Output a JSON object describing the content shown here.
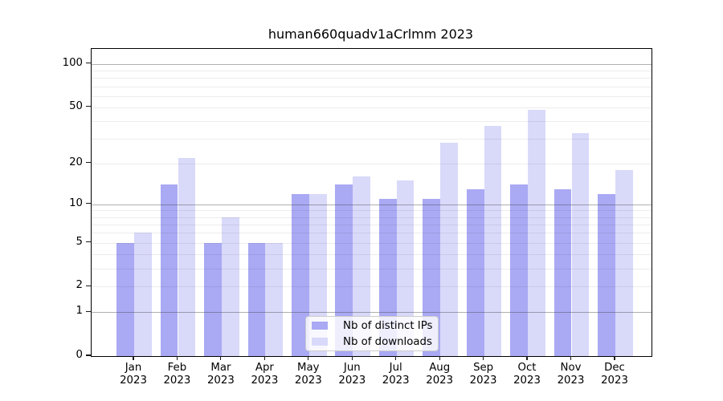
{
  "chart_data": {
    "type": "bar",
    "title": "human660quadv1aCrlmm 2023",
    "months": [
      "Jan",
      "Feb",
      "Mar",
      "Apr",
      "May",
      "Jun",
      "Jul",
      "Aug",
      "Sep",
      "Oct",
      "Nov",
      "Dec"
    ],
    "year": "2023",
    "series": [
      {
        "name": "Nb of distinct IPs",
        "color": "#a9a9f4",
        "values": [
          5,
          14,
          5,
          5,
          12,
          14,
          11,
          11,
          13,
          14,
          13,
          12
        ]
      },
      {
        "name": "Nb of downloads",
        "color": "#d9d9fa",
        "values": [
          6,
          22,
          8,
          5,
          12,
          16,
          15,
          28,
          37,
          48,
          33,
          18
        ]
      }
    ],
    "y_axis": {
      "scale": "log1p",
      "ylim": [
        0,
        127
      ],
      "tick_labels": [
        0,
        1,
        2,
        5,
        10,
        20,
        50,
        100
      ],
      "major_gridlines": [
        1,
        10,
        100
      ],
      "minor_gridlines": [
        2,
        3,
        4,
        5,
        6,
        7,
        8,
        9,
        20,
        30,
        40,
        50,
        60,
        70,
        80,
        90
      ]
    },
    "legend": {
      "position": "bottom-center",
      "entries": [
        "Nb of distinct IPs",
        "Nb of downloads"
      ]
    },
    "grid": true
  },
  "colors": {
    "grid_major": "#b0b0b0",
    "grid_minor": "#ececec",
    "spine": "#000000",
    "background": "#ffffff"
  }
}
